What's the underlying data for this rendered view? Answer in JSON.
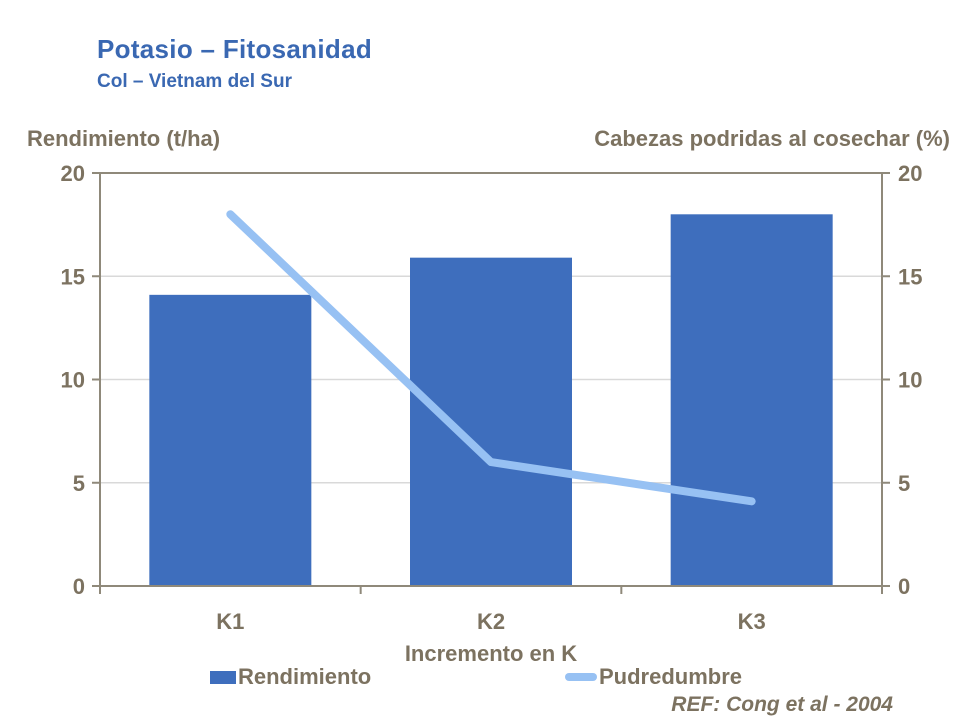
{
  "slide": {
    "title": "Potasio – Fitosanidad",
    "subtitle": "Col – Vietnam del Sur",
    "reference": "REF: Cong et al - 2004"
  },
  "axes": {
    "left_title": "Rendimiento (t/ha)",
    "right_title": "Cabezas podridas al cosechar (%)",
    "x_title": "Incremento en K"
  },
  "legend": [
    {
      "label": "Rendimiento",
      "swatch": "bar"
    },
    {
      "label": "Pudredumbre",
      "swatch": "line"
    }
  ],
  "chart_data": {
    "type": "bar",
    "subtype": "bar+line combo with dual y-axes",
    "categories": [
      "K1",
      "K2",
      "K3"
    ],
    "series": [
      {
        "name": "Rendimiento",
        "type": "bar",
        "axis": "left",
        "values": [
          14.1,
          15.9,
          18
        ]
      },
      {
        "name": "Pudredumbre",
        "type": "line",
        "axis": "right",
        "values": [
          18,
          6,
          4.1
        ]
      }
    ],
    "title": "Potasio – Fitosanidad",
    "xlabel": "Incremento en K",
    "ylabel_left": "Rendimiento (t/ha)",
    "ylabel_right": "Cabezas podridas al cosechar (%)",
    "ylim": [
      0,
      20
    ],
    "yticks": [
      0,
      5,
      10,
      15,
      20
    ],
    "grid": true,
    "legend_position": "bottom"
  },
  "colors": {
    "title_blue": "#3A68B2",
    "bar_blue": "#3E6EBD",
    "line_blue": "#97C1F3",
    "text_taupe": "#7C7260",
    "axis_line": "#8F897A",
    "gridline": "#D9D9D9",
    "background": "#FFFFFF"
  }
}
